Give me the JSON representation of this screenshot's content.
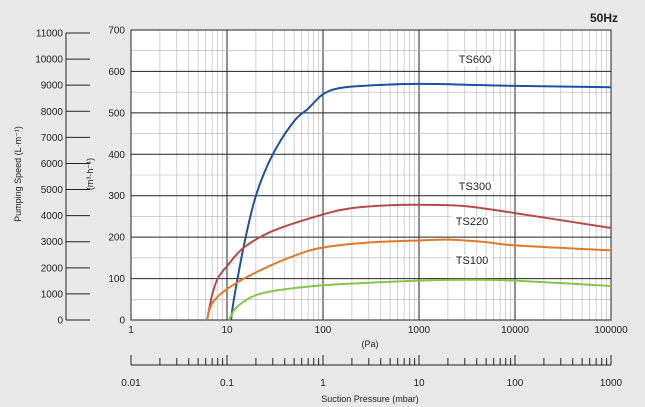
{
  "chart_data": {
    "type": "line",
    "frequency_label": "50Hz",
    "x_axis": {
      "scale": "log",
      "label": "(Pa)",
      "range": [
        1,
        100000
      ],
      "ticks": [
        "1",
        "10",
        "100",
        "1000",
        "10000",
        "100000"
      ]
    },
    "y_axis_right": {
      "label": "(m³·h⁻¹)",
      "range": [
        0,
        700
      ],
      "ticks": [
        "0",
        "100",
        "200",
        "300",
        "400",
        "500",
        "600",
        "700"
      ]
    },
    "y_axis_left": {
      "label": "Pumping Speed (L·m⁻¹)",
      "range": [
        0,
        11000
      ],
      "ticks": [
        "0",
        "1000",
        "2000",
        "3000",
        "4000",
        "5000",
        "6000",
        "7000",
        "8000",
        "9000",
        "10000",
        "11000"
      ]
    },
    "x_axis_bottom": {
      "scale": "log",
      "label": "Suction Pressure (mbar)",
      "range": [
        0.01,
        1000
      ],
      "ticks": [
        "0.01",
        "0.1",
        "1",
        "10",
        "100",
        "1000"
      ]
    },
    "grid": true,
    "series": [
      {
        "name": "TS600",
        "color": "#1f4fa3",
        "x": [
          11,
          12,
          15,
          20,
          30,
          50,
          70,
          100,
          150,
          300,
          1000,
          3000,
          10000,
          100000
        ],
        "y": [
          0,
          60,
          180,
          300,
          400,
          480,
          510,
          545,
          560,
          566,
          570,
          568,
          565,
          562
        ]
      },
      {
        "name": "TS300",
        "color": "#b84a4a",
        "x": [
          6.2,
          7,
          8,
          10,
          15,
          30,
          100,
          200,
          500,
          1000,
          3000,
          10000,
          100000
        ],
        "y": [
          0,
          60,
          100,
          130,
          175,
          215,
          255,
          270,
          277,
          278,
          275,
          258,
          222
        ]
      },
      {
        "name": "TS220",
        "color": "#e07a2a",
        "x": [
          6.2,
          7,
          10,
          20,
          50,
          100,
          300,
          1000,
          2000,
          5000,
          10000,
          100000
        ],
        "y": [
          0,
          40,
          75,
          115,
          155,
          175,
          187,
          192,
          194,
          188,
          180,
          168
        ]
      },
      {
        "name": "TS100",
        "color": "#8bc34a",
        "x": [
          10.5,
          12,
          15,
          20,
          30,
          50,
          100,
          300,
          1000,
          3000,
          10000,
          100000
        ],
        "y": [
          0,
          25,
          45,
          60,
          70,
          77,
          84,
          90,
          95,
          97,
          95,
          82
        ]
      }
    ]
  }
}
